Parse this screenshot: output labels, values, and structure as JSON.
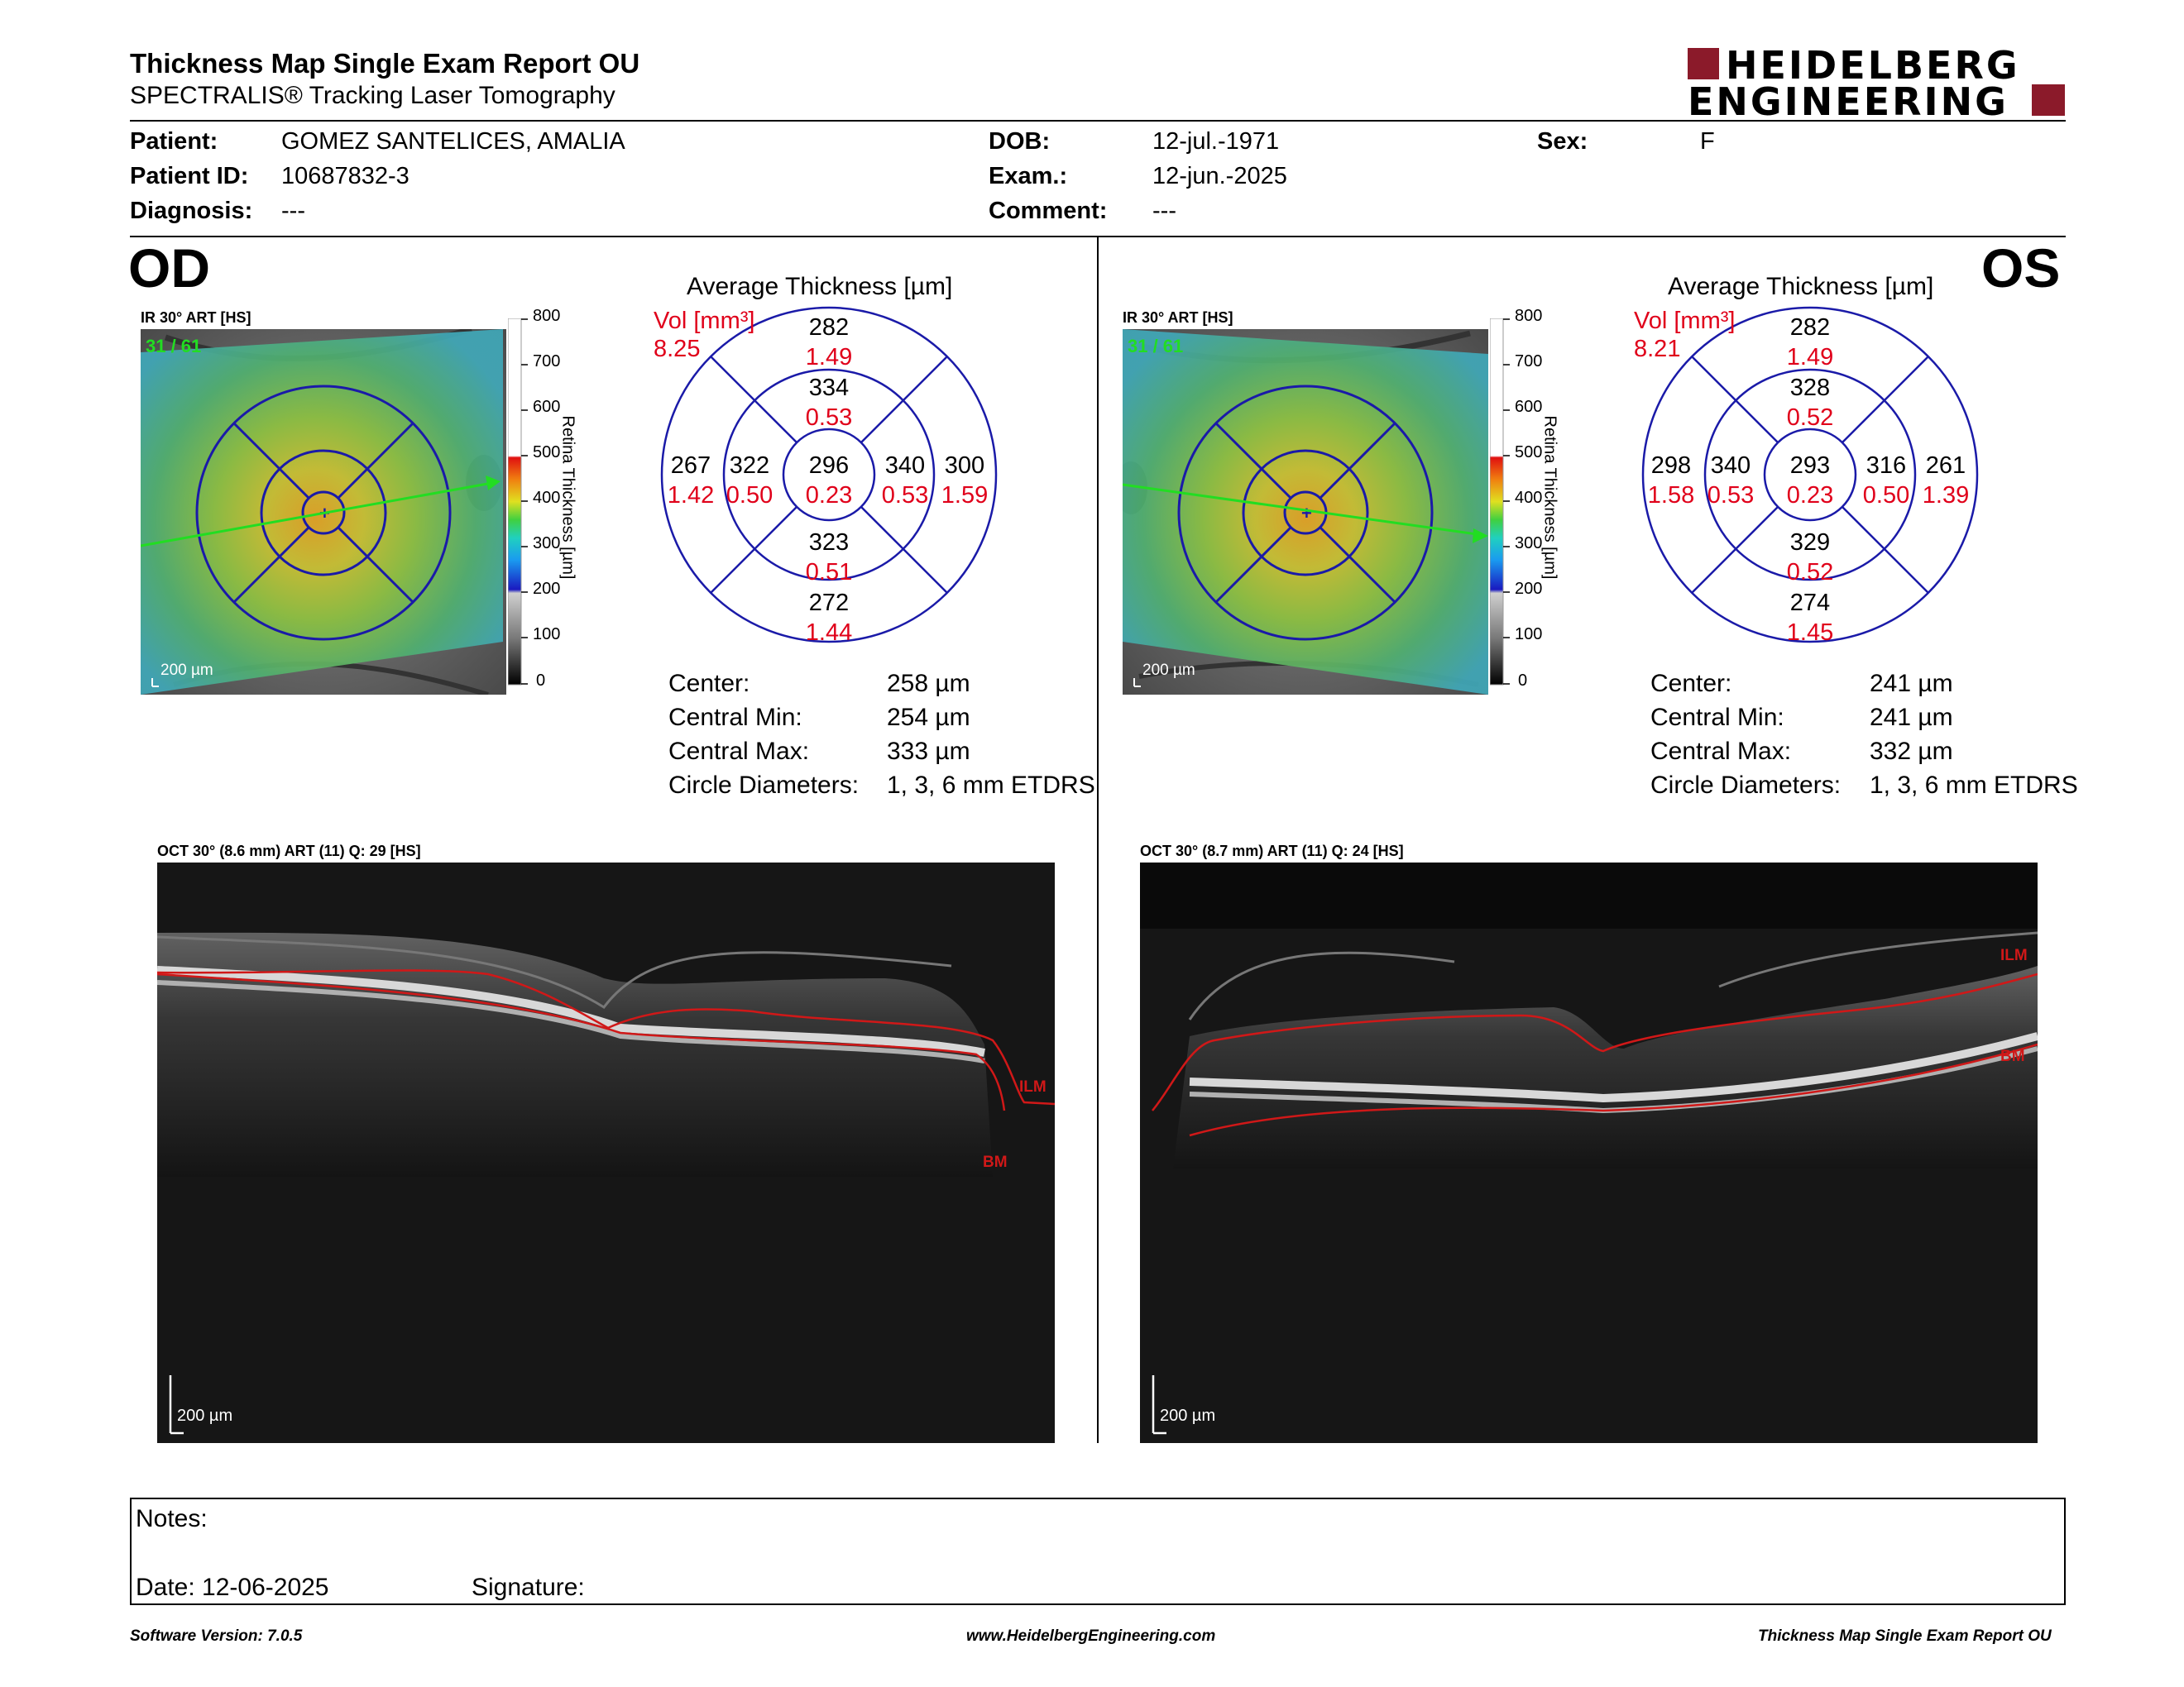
{
  "header": {
    "title": "Thickness Map Single Exam Report OU",
    "subtitle": "SPECTRALIS® Tracking Laser Tomography",
    "logo_line1": "HEIDELBERG",
    "logo_line2": "ENGINEERING"
  },
  "patient": {
    "patient_label": "Patient:",
    "patient_value": "GOMEZ SANTELICES, AMALIA",
    "id_label": "Patient ID:",
    "id_value": "10687832-3",
    "diag_label": "Diagnosis:",
    "diag_value": "---",
    "dob_label": "DOB:",
    "dob_value": "12-jul.-1971",
    "exam_label": "Exam.:",
    "exam_value": "12-jun.-2025",
    "comment_label": "Comment:",
    "comment_value": "---",
    "sex_label": "Sex:",
    "sex_value": "F"
  },
  "scale": {
    "ticks": [
      "800",
      "700",
      "600",
      "500",
      "400",
      "300",
      "200",
      "100",
      "0"
    ],
    "label": "Retina Thickness [µm]"
  },
  "od": {
    "eye": "OD",
    "ir_label": "IR 30° ART [HS]",
    "ir_art": "31 / 61",
    "ir_scalebar": "200 µm",
    "avg_title": "Average Thickness [µm]",
    "vol_label": "Vol [mm³]",
    "vol_value": "8.25",
    "grid": {
      "outer_top": "282",
      "outer_top_vol": "1.49",
      "inner_top": "334",
      "inner_top_vol": "0.53",
      "outer_left": "267",
      "outer_left_vol": "1.42",
      "inner_left": "322",
      "inner_left_vol": "0.50",
      "center": "296",
      "center_vol": "0.23",
      "inner_right": "340",
      "inner_right_vol": "0.53",
      "outer_right": "300",
      "outer_right_vol": "1.59",
      "inner_bottom": "323",
      "inner_bottom_vol": "0.51",
      "outer_bottom": "272",
      "outer_bottom_vol": "1.44"
    },
    "stats": {
      "center_label": "Center:",
      "center_value": "258 µm",
      "min_label": "Central Min:",
      "min_value": "254 µm",
      "max_label": "Central Max:",
      "max_value": "333 µm",
      "diam_label": "Circle Diameters:",
      "diam_value": "1, 3, 6 mm ETDRS"
    },
    "oct_label": "OCT 30° (8.6 mm) ART (11) Q: 29 [HS]",
    "oct_ilm": "ILM",
    "oct_bm": "BM",
    "oct_scalebar": "200 µm"
  },
  "os": {
    "eye": "OS",
    "ir_label": "IR 30° ART [HS]",
    "ir_art": "31 / 61",
    "ir_scalebar": "200 µm",
    "avg_title": "Average Thickness [µm]",
    "vol_label": "Vol [mm³]",
    "vol_value": "8.21",
    "grid": {
      "outer_top": "282",
      "outer_top_vol": "1.49",
      "inner_top": "328",
      "inner_top_vol": "0.52",
      "outer_left": "298",
      "outer_left_vol": "1.58",
      "inner_left": "340",
      "inner_left_vol": "0.53",
      "center": "293",
      "center_vol": "0.23",
      "inner_right": "316",
      "inner_right_vol": "0.50",
      "outer_right": "261",
      "outer_right_vol": "1.39",
      "inner_bottom": "329",
      "inner_bottom_vol": "0.52",
      "outer_bottom": "274",
      "outer_bottom_vol": "1.45"
    },
    "stats": {
      "center_label": "Center:",
      "center_value": "241 µm",
      "min_label": "Central Min:",
      "min_value": "241 µm",
      "max_label": "Central Max:",
      "max_value": "332 µm",
      "diam_label": "Circle Diameters:",
      "diam_value": "1, 3, 6 mm ETDRS"
    },
    "oct_label": "OCT 30° (8.7 mm) ART (11) Q: 24 [HS]",
    "oct_ilm": "ILM",
    "oct_bm": "BM",
    "oct_scalebar": "200 µm"
  },
  "notes": {
    "notes_label": "Notes:",
    "date_label": "Date: 12-06-2025",
    "signature_label": "Signature:"
  },
  "footer": {
    "software": "Software Version: 7.0.5",
    "website": "www.HeidelbergEngineering.com",
    "report": "Thickness Map Single Exam Report OU"
  },
  "colors": {
    "vol_red": "#e0001a",
    "grid_blue": "#1a1aa8",
    "logo_red": "#8b1a2a",
    "scan_green": "#22dd22"
  }
}
